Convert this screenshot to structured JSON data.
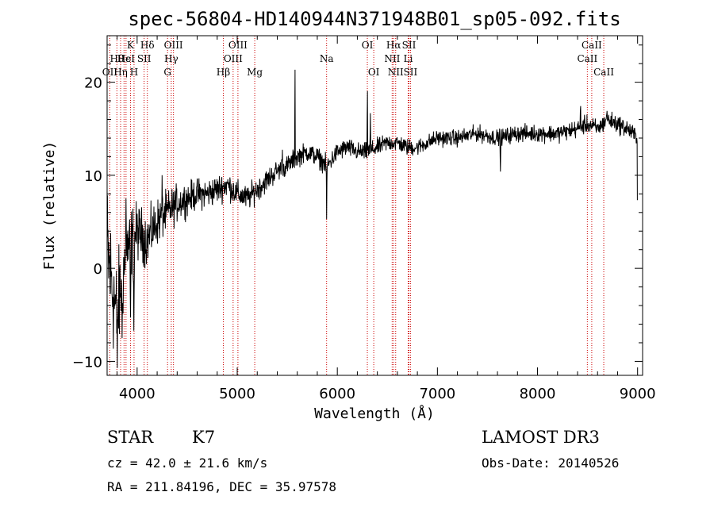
{
  "chart_data": {
    "type": "line",
    "title": "spec-56804-HD140944N371948B01_sp05-092.fits",
    "xlabel": "Wavelength (Å)",
    "ylabel": "Flux (relative)",
    "xlim": [
      3700,
      9050
    ],
    "ylim": [
      -11.5,
      25
    ],
    "x_ticks": [
      4000,
      5000,
      6000,
      7000,
      8000,
      9000
    ],
    "y_ticks": [
      -10,
      0,
      10,
      20
    ],
    "grid": false,
    "series": [
      {
        "name": "spectrum",
        "anchors": [
          [
            3700,
            2
          ],
          [
            3750,
            -2
          ],
          [
            3800,
            -5
          ],
          [
            3850,
            -1
          ],
          [
            3900,
            2
          ],
          [
            3950,
            3
          ],
          [
            4000,
            4
          ],
          [
            4100,
            3
          ],
          [
            4200,
            5
          ],
          [
            4300,
            6
          ],
          [
            4400,
            7
          ],
          [
            4500,
            7.5
          ],
          [
            4600,
            8
          ],
          [
            4700,
            8
          ],
          [
            4800,
            8.5
          ],
          [
            4900,
            9
          ],
          [
            5000,
            8
          ],
          [
            5100,
            7.5
          ],
          [
            5200,
            8.5
          ],
          [
            5300,
            9.5
          ],
          [
            5400,
            10.5
          ],
          [
            5500,
            11
          ],
          [
            5600,
            12
          ],
          [
            5700,
            12.5
          ],
          [
            5800,
            12
          ],
          [
            5900,
            11
          ],
          [
            6000,
            12.5
          ],
          [
            6100,
            13
          ],
          [
            6200,
            12.5
          ],
          [
            6300,
            12.5
          ],
          [
            6400,
            13
          ],
          [
            6500,
            13.5
          ],
          [
            6600,
            13.5
          ],
          [
            6700,
            13
          ],
          [
            6800,
            13
          ],
          [
            6900,
            13.5
          ],
          [
            7000,
            14
          ],
          [
            7200,
            14
          ],
          [
            7400,
            14.5
          ],
          [
            7600,
            14
          ],
          [
            7800,
            14.5
          ],
          [
            8000,
            14.5
          ],
          [
            8200,
            14.5
          ],
          [
            8400,
            15
          ],
          [
            8500,
            15.5
          ],
          [
            8600,
            15
          ],
          [
            8700,
            16
          ],
          [
            8800,
            15.5
          ],
          [
            8900,
            15
          ],
          [
            9000,
            14
          ]
        ],
        "features": [
          [
            3800,
            -9.5,
            6
          ],
          [
            3850,
            -8,
            5
          ],
          [
            3890,
            10.5,
            4
          ],
          [
            3933,
            -6,
            6
          ],
          [
            3968,
            -5,
            6
          ],
          [
            4250,
            8,
            6
          ],
          [
            5450,
            13,
            5
          ],
          [
            5577,
            24,
            3
          ],
          [
            5893,
            5.5,
            4
          ],
          [
            6300,
            21,
            3
          ],
          [
            6330,
            17,
            3
          ],
          [
            7630,
            10,
            4
          ],
          [
            8430,
            17,
            5
          ],
          [
            8690,
            17,
            5
          ],
          [
            9000,
            0,
            3
          ]
        ],
        "noise": [
          [
            3700,
            6
          ],
          [
            4000,
            2.5
          ],
          [
            4500,
            1.4
          ],
          [
            5500,
            0.9
          ],
          [
            7000,
            0.7
          ],
          [
            9000,
            0.8
          ]
        ]
      }
    ],
    "lines": [
      {
        "x": 3727,
        "row": 2,
        "label": "OII"
      },
      {
        "x": 3798,
        "row": 1,
        "label": "Hθ"
      },
      {
        "x": 3835,
        "row": 2,
        "label": "Hη"
      },
      {
        "x": 3869,
        "row": 1,
        "label": "Hε"
      },
      {
        "x": 3889,
        "row": 1,
        "label": "HeI"
      },
      {
        "x": 3934,
        "row": 0,
        "label": "K"
      },
      {
        "x": 3969,
        "row": 2,
        "label": "H"
      },
      {
        "x": 4070,
        "row": 1,
        "label": "SII"
      },
      {
        "x": 4102,
        "row": 0,
        "label": "Hδ"
      },
      {
        "x": 4304,
        "row": 2,
        "label": "G"
      },
      {
        "x": 4341,
        "row": 1,
        "label": "Hγ"
      },
      {
        "x": 4363,
        "row": 0,
        "label": "OIII"
      },
      {
        "x": 4861,
        "row": 2,
        "label": "Hβ"
      },
      {
        "x": 4959,
        "row": 1,
        "label": "OIII"
      },
      {
        "x": 5007,
        "row": 0,
        "label": "OIII"
      },
      {
        "x": 5175,
        "row": 2,
        "label": "Mg"
      },
      {
        "x": 5893,
        "row": 1,
        "label": "Na"
      },
      {
        "x": 6300,
        "row": 0,
        "label": "OI"
      },
      {
        "x": 6364,
        "row": 2,
        "label": "OI"
      },
      {
        "x": 6548,
        "row": 1,
        "label": "NII"
      },
      {
        "x": 6563,
        "row": 0,
        "label": "Hα"
      },
      {
        "x": 6583,
        "row": 2,
        "label": "NII"
      },
      {
        "x": 6708,
        "row": 1,
        "label": "Li"
      },
      {
        "x": 6716,
        "row": 0,
        "label": "SII"
      },
      {
        "x": 6731,
        "row": 2,
        "label": "SII"
      },
      {
        "x": 8498,
        "row": 1,
        "label": "CaII"
      },
      {
        "x": 8542,
        "row": 0,
        "label": "CaII"
      },
      {
        "x": 8662,
        "row": 2,
        "label": "CaII"
      }
    ],
    "colors": {
      "spectrum": "#000000",
      "line_marker": "#cc0000",
      "axes": "#000000"
    }
  },
  "info": {
    "object_class": "STAR",
    "subclass": "K7",
    "redshift": "cz = 42.0 ± 21.6 km/s",
    "coords": "RA = 211.84196, DEC =  35.97578",
    "survey": "LAMOST DR3",
    "obs_date": "Obs-Date: 20140526"
  }
}
